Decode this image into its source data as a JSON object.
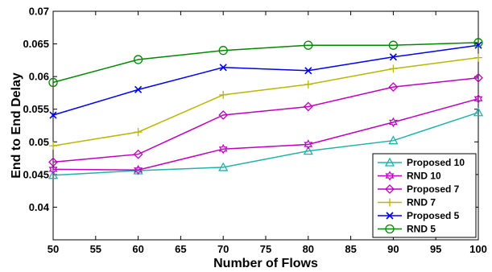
{
  "chart_data": {
    "type": "line",
    "title": "",
    "xlabel": "Number of Flows",
    "ylabel": "End to End Delay",
    "xlim": [
      50,
      100
    ],
    "ylim": [
      0.035,
      0.07
    ],
    "xticks": [
      50,
      55,
      60,
      65,
      70,
      75,
      80,
      85,
      90,
      95,
      100
    ],
    "yticks": [
      0.04,
      0.045,
      0.05,
      0.055,
      0.06,
      0.065,
      0.07
    ],
    "x_tick_labels": [
      "50",
      "55",
      "60",
      "65",
      "70",
      "75",
      "80",
      "85",
      "90",
      "95",
      "100"
    ],
    "y_tick_labels": [
      "0.04",
      "0.045",
      "0.05",
      "0.055",
      "0.06",
      "0.065",
      "0.07"
    ],
    "grid": false,
    "legend_position": "bottom-right",
    "x": [
      50,
      60,
      70,
      80,
      90,
      100
    ],
    "series": [
      {
        "name": "Proposed 10",
        "values": [
          0.0449,
          0.0456,
          0.0461,
          0.0486,
          0.0502,
          0.0545
        ],
        "color": "#20B2AA",
        "marker": "triangle"
      },
      {
        "name": "RND 10",
        "values": [
          0.0458,
          0.0457,
          0.0489,
          0.0496,
          0.053,
          0.0566
        ],
        "color": "#C000C0",
        "marker": "hexagram"
      },
      {
        "name": "Proposed 7",
        "values": [
          0.0469,
          0.0481,
          0.0541,
          0.0554,
          0.0584,
          0.0598
        ],
        "color": "#C000C0",
        "marker": "diamond"
      },
      {
        "name": "RND 7",
        "values": [
          0.0494,
          0.0515,
          0.0572,
          0.0588,
          0.0612,
          0.0629
        ],
        "color": "#B8B800",
        "marker": "plus"
      },
      {
        "name": "Proposed 5",
        "values": [
          0.0541,
          0.058,
          0.0614,
          0.0609,
          0.063,
          0.0648
        ],
        "color": "#0000EE",
        "marker": "x"
      },
      {
        "name": "RND  5",
        "values": [
          0.0591,
          0.0626,
          0.064,
          0.0648,
          0.0648,
          0.0652
        ],
        "color": "#008800",
        "marker": "circle"
      }
    ]
  }
}
